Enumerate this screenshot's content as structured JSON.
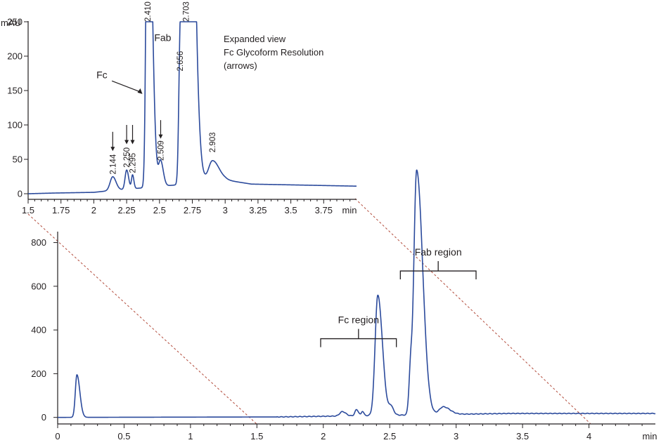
{
  "chart_data": [
    {
      "type": "line",
      "name": "main",
      "x_unit": "min",
      "xlim": [
        0,
        4.5
      ],
      "ylim": [
        -30,
        850
      ],
      "x_ticks": [
        0,
        0.5,
        1,
        1.5,
        2,
        2.5,
        3,
        3.5,
        4
      ],
      "x_tick_labels": [
        "0",
        "0.5",
        "1",
        "1.5",
        "2",
        "2.5",
        "3",
        "3.5",
        "4"
      ],
      "y_ticks": [
        0,
        200,
        400,
        600,
        800
      ],
      "y_tick_labels": [
        "0",
        "200",
        "400",
        "600",
        "800"
      ],
      "baseline": [
        [
          0,
          0
        ],
        [
          1.65,
          2
        ],
        [
          2.0,
          5
        ],
        [
          2.3,
          8
        ],
        [
          3.4,
          18
        ],
        [
          4.05,
          18
        ],
        [
          4.5,
          18
        ]
      ],
      "peaks": [
        {
          "x": 0.145,
          "h": 195,
          "wl": 0.012,
          "wr": 0.022
        },
        {
          "x": 2.144,
          "h": 20,
          "wl": 0.02,
          "wr": 0.025
        },
        {
          "x": 2.25,
          "h": 28,
          "wl": 0.012,
          "wr": 0.015
        },
        {
          "x": 2.295,
          "h": 20,
          "wl": 0.008,
          "wr": 0.01
        },
        {
          "x": 2.41,
          "h": 550,
          "wl": 0.02,
          "wr": 0.035
        },
        {
          "x": 2.509,
          "h": 38,
          "wl": 0.015,
          "wr": 0.02
        },
        {
          "x": 2.656,
          "h": 160,
          "wl": 0.012,
          "wr": 0.01
        },
        {
          "x": 2.703,
          "h": 1120,
          "wl": 0.022,
          "wr": 0.045
        },
        {
          "x": 2.903,
          "h": 35,
          "wl": 0.03,
          "wr": 0.05
        }
      ],
      "regions": [
        {
          "label": "Fc region",
          "x_from": 1.98,
          "x_to": 2.55,
          "y": 360
        },
        {
          "label": "Fab region",
          "x_from": 2.58,
          "x_to": 3.15,
          "y": 670
        }
      ]
    },
    {
      "type": "line",
      "name": "expanded",
      "ylabel": "mAU",
      "x_unit": "min",
      "xlim": [
        1.5,
        4.0
      ],
      "ylim": [
        0,
        250
      ],
      "x_ticks": [
        1.5,
        1.75,
        2,
        2.25,
        2.5,
        2.75,
        3,
        3.25,
        3.5,
        3.75
      ],
      "x_tick_labels": [
        "1.5",
        "1.75",
        "2",
        "2.25",
        "2.5",
        "2.75",
        "3",
        "3.25",
        "3.5",
        "3.75"
      ],
      "y_ticks": [
        0,
        50,
        100,
        150,
        200,
        250
      ],
      "y_tick_labels": [
        "0",
        "50",
        "100",
        "150",
        "200",
        "250"
      ],
      "baseline": [
        [
          1.5,
          0
        ],
        [
          1.7,
          1
        ],
        [
          2.0,
          2
        ],
        [
          2.1,
          4
        ],
        [
          2.7,
          14
        ],
        [
          3.0,
          20
        ],
        [
          3.2,
          14
        ],
        [
          4.0,
          11
        ]
      ],
      "peaks": [
        {
          "x": 2.144,
          "h": 20,
          "wl": 0.02,
          "wr": 0.025
        },
        {
          "x": 2.25,
          "h": 28,
          "wl": 0.012,
          "wr": 0.015
        },
        {
          "x": 2.295,
          "h": 20,
          "wl": 0.008,
          "wr": 0.01
        },
        {
          "x": 2.41,
          "h": 560,
          "wl": 0.012,
          "wr": 0.03
        },
        {
          "x": 2.509,
          "h": 36,
          "wl": 0.015,
          "wr": 0.02
        },
        {
          "x": 2.656,
          "h": 160,
          "wl": 0.01,
          "wr": 0.008
        },
        {
          "x": 2.703,
          "h": 1130,
          "wl": 0.02,
          "wr": 0.045
        },
        {
          "x": 2.903,
          "h": 30,
          "wl": 0.03,
          "wr": 0.05
        }
      ],
      "peak_labels": [
        {
          "text": "2.144",
          "x": 2.144,
          "y": 28
        },
        {
          "text": "2.250",
          "x": 2.25,
          "y": 38
        },
        {
          "text": "2.295",
          "x": 2.295,
          "y": 30
        },
        {
          "text": "2.410",
          "x": 2.41,
          "y": 250
        },
        {
          "text": "2.509",
          "x": 2.509,
          "y": 48
        },
        {
          "text": "2.656",
          "x": 2.656,
          "y": 178
        },
        {
          "text": "2.703",
          "x": 2.703,
          "y": 250
        },
        {
          "text": "2.903",
          "x": 2.903,
          "y": 60
        }
      ],
      "arrows": [
        {
          "x": 2.144,
          "y_from": 90,
          "y_to": 62
        },
        {
          "x": 2.25,
          "y_from": 100,
          "y_to": 72
        },
        {
          "x": 2.295,
          "y_from": 100,
          "y_to": 72
        },
        {
          "x": 2.509,
          "y_from": 107,
          "y_to": 80
        }
      ],
      "annotations": [
        {
          "text": "Fc",
          "x": 2.02,
          "y": 168
        },
        {
          "text": "Fab",
          "x": 2.46,
          "y": 222
        }
      ],
      "note": [
        "Expanded view",
        "Fc Glycoform Resolution",
        "(arrows)"
      ]
    }
  ],
  "colors": {
    "trace": "#2b4a9c",
    "axis": "#231f20",
    "dashed": "#b24a3a"
  }
}
